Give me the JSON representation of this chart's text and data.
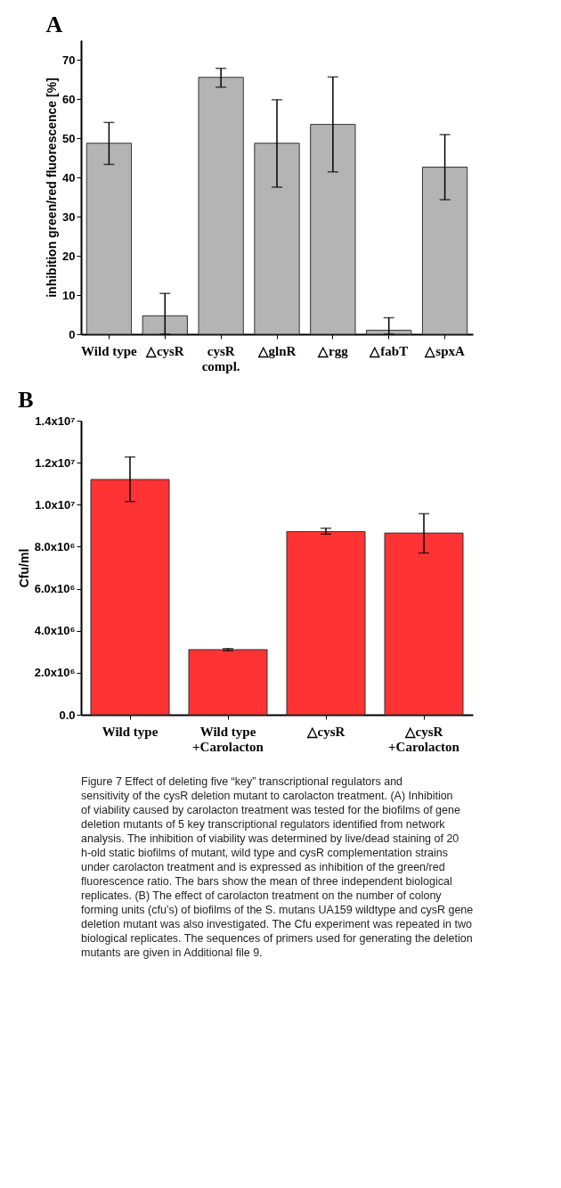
{
  "chart_data": [
    {
      "type": "bar",
      "title": "A",
      "ylabel": "inhibition green/red fluorescence [%]",
      "categories": [
        "Wild type",
        "△cysR",
        "cysR\ncompl.",
        "△glnR",
        "△rgg",
        "△fabT",
        "△spxA"
      ],
      "values": [
        48.7,
        4.7,
        65.5,
        48.7,
        53.5,
        1.0,
        42.6
      ],
      "errors": [
        [
          43.3,
          54.0
        ],
        [
          0,
          10.4
        ],
        [
          63.0,
          67.8
        ],
        [
          37.5,
          59.8
        ],
        [
          41.4,
          65.6
        ],
        [
          0,
          4.2
        ],
        [
          34.3,
          50.9
        ]
      ],
      "color": "#b4b4b4",
      "ylim": [
        0,
        75
      ],
      "yticks": [
        0,
        10,
        20,
        30,
        40,
        50,
        60,
        70
      ],
      "grid": false
    },
    {
      "type": "bar",
      "title": "B",
      "ylabel": "Cfu/ml",
      "categories": [
        "Wild type",
        "Wild type\n+Carolacton",
        "△cysR",
        "△cysR\n+Carolacton"
      ],
      "values": [
        11200000,
        3100000,
        8720000,
        8650000
      ],
      "errors": [
        [
          10150000,
          12270000
        ],
        [
          3050000,
          3150000
        ],
        [
          8600000,
          8880000
        ],
        [
          7700000,
          9570000
        ]
      ],
      "color": "#ff3333",
      "ylim": [
        0,
        14000000
      ],
      "yticks": [
        {
          "value": 0,
          "label": "0.0"
        },
        {
          "value": 2000000,
          "label": "2.0x10⁶"
        },
        {
          "value": 4000000,
          "label": "4.0x10⁶"
        },
        {
          "value": 6000000,
          "label": "6.0x10⁶"
        },
        {
          "value": 8000000,
          "label": "8.0x10⁶"
        },
        {
          "value": 10000000,
          "label": "1.0x10⁷"
        },
        {
          "value": 12000000,
          "label": "1.2x10⁷"
        },
        {
          "value": 14000000,
          "label": "1.4x10⁷"
        }
      ],
      "grid": false,
      "annotations": [
        "Figure 7 Effect of deleting five “key” transcriptional regulators and sensitivity of the cysR deletion mutant to carolacton treatment. (A) Inhibition of viability caused by carolacton treatment was tested for the biofilms of gene deletion mutants of 5 key transcriptional regulators identified from network analysis. The inhibition of viability was determined by live/dead staining of 20 h-old static biofilms of mutant, wild type and cysR complementation strains under carolacton treatment and is expressed as inhibition of the green/red fluorescence ratio. The bars show the mean of three independent biological replicates. (B) The effect of carolacton treatment on the number of colony forming units (cfu’s) of biofilms of the S. mutans UA159 wildtype and cysR gene deletion mutant was also investigated. The Cfu experiment was repeated in two biological replicates. The sequences of primers used for generating the deletion mutants are given in Additional file 9."
      ]
    }
  ]
}
